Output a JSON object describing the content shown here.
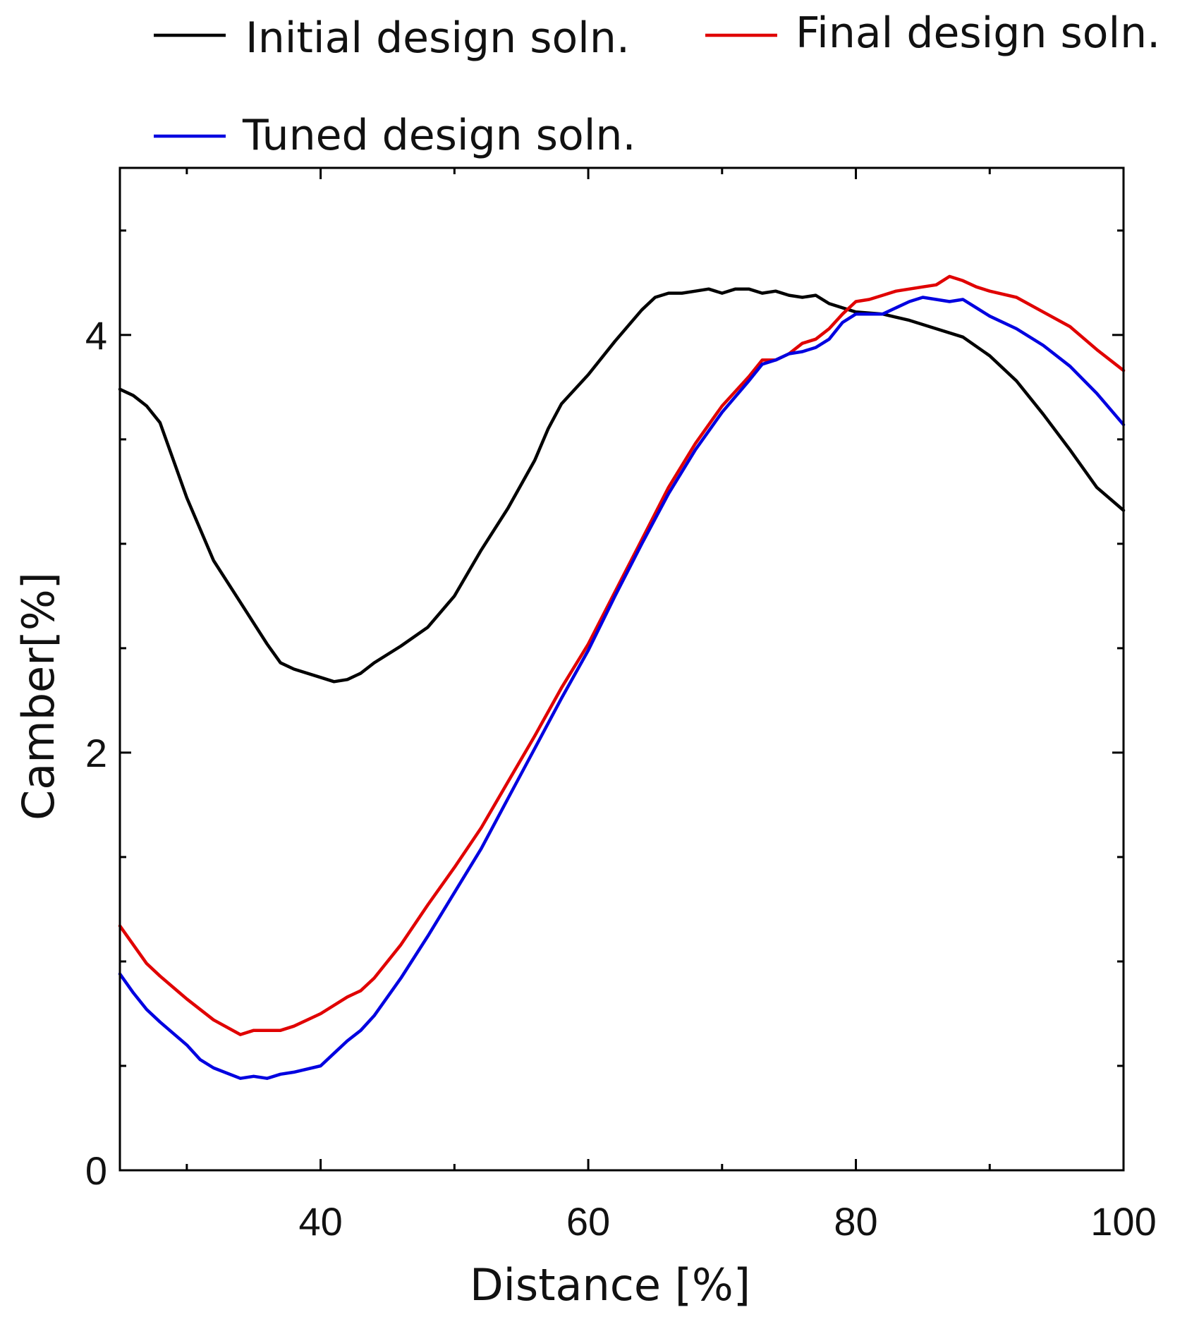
{
  "chart_data": {
    "type": "line",
    "title": "",
    "xlabel": "Distance [%]",
    "ylabel": "Camber[%]",
    "xlim": [
      25,
      100
    ],
    "ylim": [
      0,
      4.8
    ],
    "xticks_major": [
      40,
      60,
      80,
      100
    ],
    "xticks_minor": [
      30,
      50,
      70,
      90
    ],
    "yticks_major": [
      0,
      2,
      4
    ],
    "yticks_minor": [
      0.5,
      1,
      1.5,
      2.5,
      3,
      3.5,
      4.5
    ],
    "grid": false,
    "legend_position": "top",
    "series": [
      {
        "name": "Initial design soln.",
        "color": "#000000",
        "x": [
          25,
          26,
          27,
          28,
          30,
          32,
          34,
          36,
          37,
          38,
          40,
          41,
          42,
          43,
          44,
          46,
          48,
          50,
          52,
          54,
          56,
          57,
          58,
          60,
          62,
          64,
          65,
          66,
          67,
          68,
          69,
          70,
          71,
          72,
          73,
          74,
          75,
          76,
          77,
          78,
          80,
          82,
          84,
          86,
          88,
          90,
          92,
          94,
          96,
          98,
          100
        ],
        "values": [
          3.74,
          3.71,
          3.66,
          3.58,
          3.22,
          2.92,
          2.72,
          2.52,
          2.43,
          2.4,
          2.36,
          2.34,
          2.35,
          2.38,
          2.43,
          2.51,
          2.6,
          2.75,
          2.97,
          3.17,
          3.4,
          3.55,
          3.67,
          3.81,
          3.97,
          4.12,
          4.18,
          4.2,
          4.2,
          4.21,
          4.22,
          4.2,
          4.22,
          4.22,
          4.2,
          4.21,
          4.19,
          4.18,
          4.19,
          4.15,
          4.11,
          4.1,
          4.07,
          4.03,
          3.99,
          3.9,
          3.78,
          3.62,
          3.45,
          3.27,
          3.16
        ]
      },
      {
        "name": "Final design soln.",
        "color": "#e00000",
        "x": [
          25,
          26,
          27,
          28,
          30,
          32,
          34,
          35,
          36,
          37,
          38,
          40,
          41,
          42,
          43,
          44,
          46,
          48,
          50,
          52,
          54,
          56,
          58,
          60,
          62,
          64,
          66,
          68,
          70,
          72,
          73,
          74,
          75,
          76,
          77,
          78,
          79,
          80,
          81,
          82,
          83,
          84,
          85,
          86,
          87,
          88,
          89,
          90,
          92,
          94,
          96,
          98,
          100
        ],
        "values": [
          1.17,
          1.08,
          0.99,
          0.93,
          0.82,
          0.72,
          0.65,
          0.67,
          0.67,
          0.67,
          0.69,
          0.75,
          0.79,
          0.83,
          0.86,
          0.92,
          1.08,
          1.27,
          1.45,
          1.64,
          1.86,
          2.08,
          2.31,
          2.52,
          2.77,
          3.02,
          3.27,
          3.48,
          3.66,
          3.8,
          3.88,
          3.88,
          3.91,
          3.96,
          3.98,
          4.03,
          4.1,
          4.16,
          4.17,
          4.19,
          4.21,
          4.22,
          4.23,
          4.24,
          4.28,
          4.26,
          4.23,
          4.21,
          4.18,
          4.11,
          4.04,
          3.93,
          3.83
        ]
      },
      {
        "name": "Tuned design soln.",
        "color": "#0000e0",
        "x": [
          25,
          26,
          27,
          28,
          30,
          31,
          32,
          34,
          35,
          36,
          37,
          38,
          40,
          41,
          42,
          43,
          44,
          46,
          48,
          50,
          52,
          54,
          56,
          58,
          60,
          62,
          64,
          66,
          68,
          70,
          72,
          73,
          74,
          75,
          76,
          77,
          78,
          79,
          80,
          81,
          82,
          83,
          84,
          85,
          86,
          87,
          88,
          89,
          90,
          92,
          94,
          96,
          98,
          100
        ],
        "values": [
          0.94,
          0.85,
          0.77,
          0.71,
          0.6,
          0.53,
          0.49,
          0.44,
          0.45,
          0.44,
          0.46,
          0.47,
          0.5,
          0.56,
          0.62,
          0.67,
          0.74,
          0.92,
          1.12,
          1.33,
          1.54,
          1.78,
          2.02,
          2.26,
          2.49,
          2.75,
          3.0,
          3.24,
          3.45,
          3.63,
          3.78,
          3.86,
          3.88,
          3.91,
          3.92,
          3.94,
          3.98,
          4.06,
          4.1,
          4.1,
          4.1,
          4.13,
          4.16,
          4.18,
          4.17,
          4.16,
          4.17,
          4.13,
          4.09,
          4.03,
          3.95,
          3.85,
          3.72,
          3.57
        ]
      }
    ]
  }
}
